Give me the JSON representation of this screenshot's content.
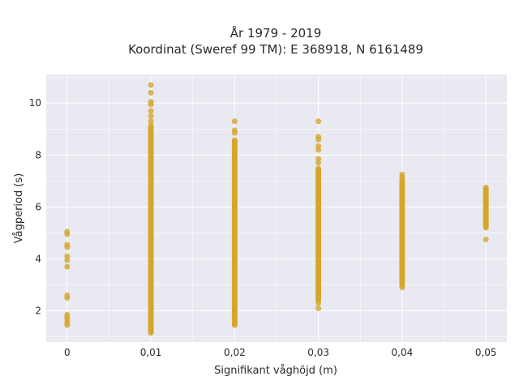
{
  "chart_data": {
    "type": "scatter",
    "title": "År 1979 - 2019",
    "subtitle": "Koordinat (Sweref 99 TM): E 368918, N 6161489",
    "xlabel": "Signifikant våghöjd (m)",
    "ylabel": "Vågperiod (s)",
    "xlim": [
      -0.0025,
      0.0525
    ],
    "ylim": [
      0.8,
      11.1
    ],
    "x_ticks": [
      {
        "value": 0,
        "label": "0"
      },
      {
        "value": 0.01,
        "label": "0,01"
      },
      {
        "value": 0.02,
        "label": "0,02"
      },
      {
        "value": 0.03,
        "label": "0,03"
      },
      {
        "value": 0.04,
        "label": "0,04"
      },
      {
        "value": 0.05,
        "label": "0,05"
      }
    ],
    "y_ticks": [
      {
        "value": 2,
        "label": "2"
      },
      {
        "value": 4,
        "label": "4"
      },
      {
        "value": 6,
        "label": "6"
      },
      {
        "value": 8,
        "label": "8"
      },
      {
        "value": 10,
        "label": "10"
      }
    ],
    "grid": true,
    "marker_color": "#d4a62a",
    "plot_background": "#e9e9f1",
    "grid_color": "#ffffff",
    "series": [
      {
        "points": [
          {
            "x": 0,
            "y": 5.05
          },
          {
            "x": 0,
            "y": 4.95
          },
          {
            "x": 0,
            "y": 4.55
          },
          {
            "x": 0,
            "y": 4.45
          },
          {
            "x": 0,
            "y": 4.1
          },
          {
            "x": 0,
            "y": 3.95
          },
          {
            "x": 0,
            "y": 3.7
          },
          {
            "x": 0,
            "y": 2.6
          },
          {
            "x": 0,
            "y": 2.5
          },
          {
            "x": 0,
            "y": 1.85
          },
          {
            "x": 0,
            "y": 1.75
          },
          {
            "x": 0,
            "y": 1.65
          },
          {
            "x": 0,
            "y": 1.55
          },
          {
            "x": 0,
            "y": 1.45
          },
          {
            "x": 0.01,
            "y": 10.7
          },
          {
            "x": 0.01,
            "y": 10.4
          },
          {
            "x": 0.01,
            "y": 10.05
          },
          {
            "x": 0.01,
            "y": 9.95
          },
          {
            "x": 0.01,
            "y": 9.7
          },
          {
            "x": 0.01,
            "y": 9.5
          },
          {
            "x": 0.01,
            "y": 9.3
          },
          {
            "x": 0.01,
            "y": 9.15
          },
          {
            "x": 0.02,
            "y": 9.3
          },
          {
            "x": 0.02,
            "y": 8.95
          },
          {
            "x": 0.02,
            "y": 8.85
          },
          {
            "x": 0.03,
            "y": 9.3
          },
          {
            "x": 0.03,
            "y": 8.7
          },
          {
            "x": 0.03,
            "y": 8.6
          },
          {
            "x": 0.03,
            "y": 8.35
          },
          {
            "x": 0.03,
            "y": 8.2
          },
          {
            "x": 0.03,
            "y": 7.85
          },
          {
            "x": 0.03,
            "y": 7.7
          },
          {
            "x": 0.03,
            "y": 2.3
          },
          {
            "x": 0.03,
            "y": 2.1
          },
          {
            "x": 0.04,
            "y": 7.25
          },
          {
            "x": 0.04,
            "y": 7.15
          },
          {
            "x": 0.04,
            "y": 2.9
          },
          {
            "x": 0.05,
            "y": 6.75
          },
          {
            "x": 0.05,
            "y": 4.75
          }
        ],
        "ranges": [
          {
            "x": 0.01,
            "y_min": 1.15,
            "y_max": 9.1
          },
          {
            "x": 0.02,
            "y_min": 1.45,
            "y_max": 8.6
          },
          {
            "x": 0.03,
            "y_min": 2.4,
            "y_max": 7.5
          },
          {
            "x": 0.04,
            "y_min": 3.0,
            "y_max": 7.05
          },
          {
            "x": 0.05,
            "y_min": 5.2,
            "y_max": 6.7
          }
        ]
      }
    ]
  }
}
